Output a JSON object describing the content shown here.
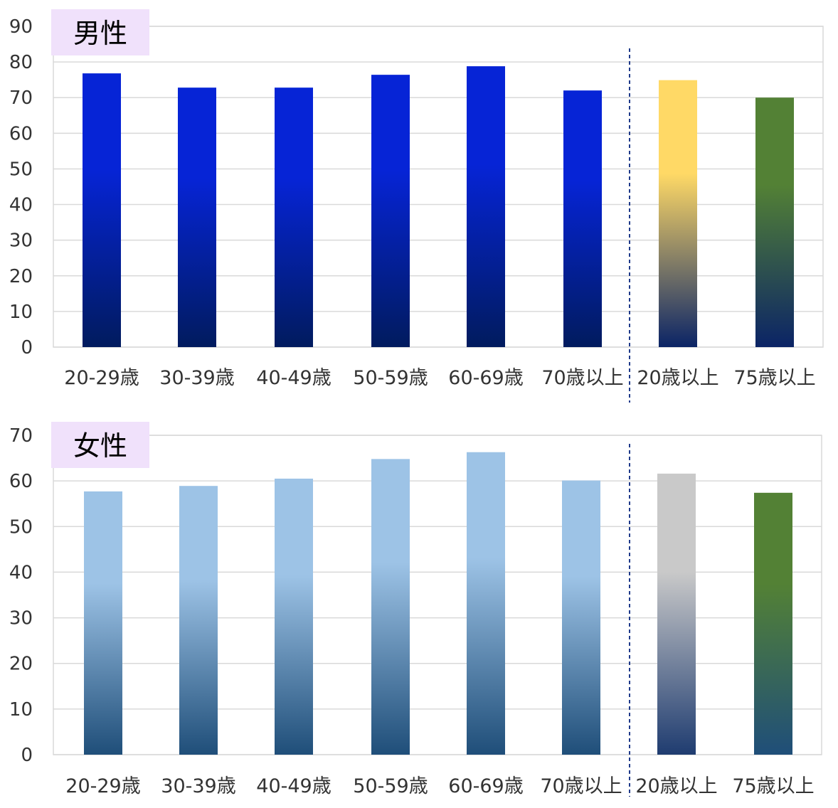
{
  "chart_data": [
    {
      "type": "bar",
      "title": "男性",
      "ylim": [
        0,
        90
      ],
      "yticks": [
        0,
        10,
        20,
        30,
        40,
        50,
        60,
        70,
        80,
        90
      ],
      "grid": true,
      "categories": [
        "20-29歳",
        "30-39歳",
        "40-49歳",
        "50-59歳",
        "60-69歳",
        "70歳以上",
        "20歳以上",
        "75歳以上"
      ],
      "values": [
        76.8,
        72.8,
        72.8,
        76.4,
        78.8,
        72.0,
        74.9,
        70.0
      ],
      "bar_gradients": [
        [
          "#0624d6",
          "#011b5e"
        ],
        [
          "#0624d6",
          "#011b5e"
        ],
        [
          "#0624d6",
          "#011b5e"
        ],
        [
          "#0624d6",
          "#011b5e"
        ],
        [
          "#0624d6",
          "#011b5e"
        ],
        [
          "#0624d6",
          "#011b5e"
        ],
        [
          "#ffd966",
          "#0b2466"
        ],
        [
          "#538135",
          "#0b2466"
        ]
      ],
      "divider_after_index": 5
    },
    {
      "type": "bar",
      "title": "女性",
      "ylim": [
        0,
        70
      ],
      "yticks": [
        0,
        10,
        20,
        30,
        40,
        50,
        60,
        70
      ],
      "grid": true,
      "categories": [
        "20-29歳",
        "30-39歳",
        "40-49歳",
        "50-59歳",
        "60-69歳",
        "70歳以上",
        "20歳以上",
        "75歳以上"
      ],
      "values": [
        57.7,
        58.9,
        60.5,
        64.8,
        66.3,
        60.1,
        61.6,
        57.4
      ],
      "bar_gradients": [
        [
          "#9dc3e6",
          "#1f4e79"
        ],
        [
          "#9dc3e6",
          "#1f4e79"
        ],
        [
          "#9dc3e6",
          "#1f4e79"
        ],
        [
          "#9dc3e6",
          "#1f4e79"
        ],
        [
          "#9dc3e6",
          "#1f4e79"
        ],
        [
          "#9dc3e6",
          "#1f4e79"
        ],
        [
          "#c9c9c9",
          "#1f3c70"
        ],
        [
          "#538135",
          "#1f4e79"
        ]
      ],
      "divider_after_index": 5
    }
  ],
  "colors": {
    "badge_bg": "#f0e1fb",
    "grid": "#d9d9d9",
    "divider": "#1f3a8a"
  }
}
